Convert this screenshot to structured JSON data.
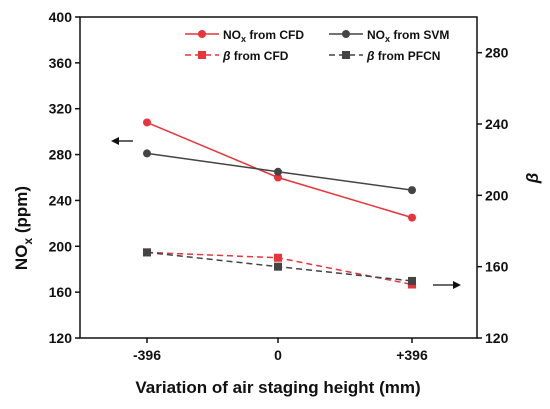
{
  "chart_data": {
    "type": "line",
    "categories": [
      "-396",
      "0",
      "+396"
    ],
    "x": [
      -396,
      0,
      396
    ],
    "xlabel": "Variation of air staging height (mm)",
    "ylabel_left": {
      "main": "NO",
      "sub": "x",
      "rest": " (ppm)"
    },
    "ylabel_right": "β",
    "ylim_left": [
      120,
      400
    ],
    "yticks_left": [
      120,
      160,
      200,
      240,
      280,
      320,
      360,
      400
    ],
    "ylim_right": [
      120,
      300
    ],
    "yticks_right": [
      120,
      160,
      200,
      240,
      280
    ],
    "grid": false,
    "legend_position": "top-right",
    "series": [
      {
        "name_parts": [
          "NO",
          "x",
          " from CFD"
        ],
        "axis": "left",
        "style": "solid",
        "marker": "circle",
        "color": "#e8343a",
        "values": [
          308,
          260,
          225
        ]
      },
      {
        "name_parts": [
          "NO",
          "x",
          " from SVM"
        ],
        "axis": "left",
        "style": "solid",
        "marker": "circle",
        "color": "#444444",
        "values": [
          281,
          265,
          249
        ]
      },
      {
        "name_parts": [
          "β",
          "",
          " from CFD"
        ],
        "axis": "right",
        "style": "dashed",
        "marker": "square",
        "color": "#e8343a",
        "values": [
          168,
          165,
          150
        ]
      },
      {
        "name_parts": [
          "β",
          "",
          " from PFCN"
        ],
        "axis": "right",
        "style": "dashed",
        "marker": "square",
        "color": "#444444",
        "values": [
          168,
          160,
          152
        ]
      }
    ],
    "annotations": [
      {
        "type": "arrow",
        "direction": "left",
        "points_to_axis": "left"
      },
      {
        "type": "arrow",
        "direction": "right",
        "points_to_axis": "right"
      }
    ]
  }
}
